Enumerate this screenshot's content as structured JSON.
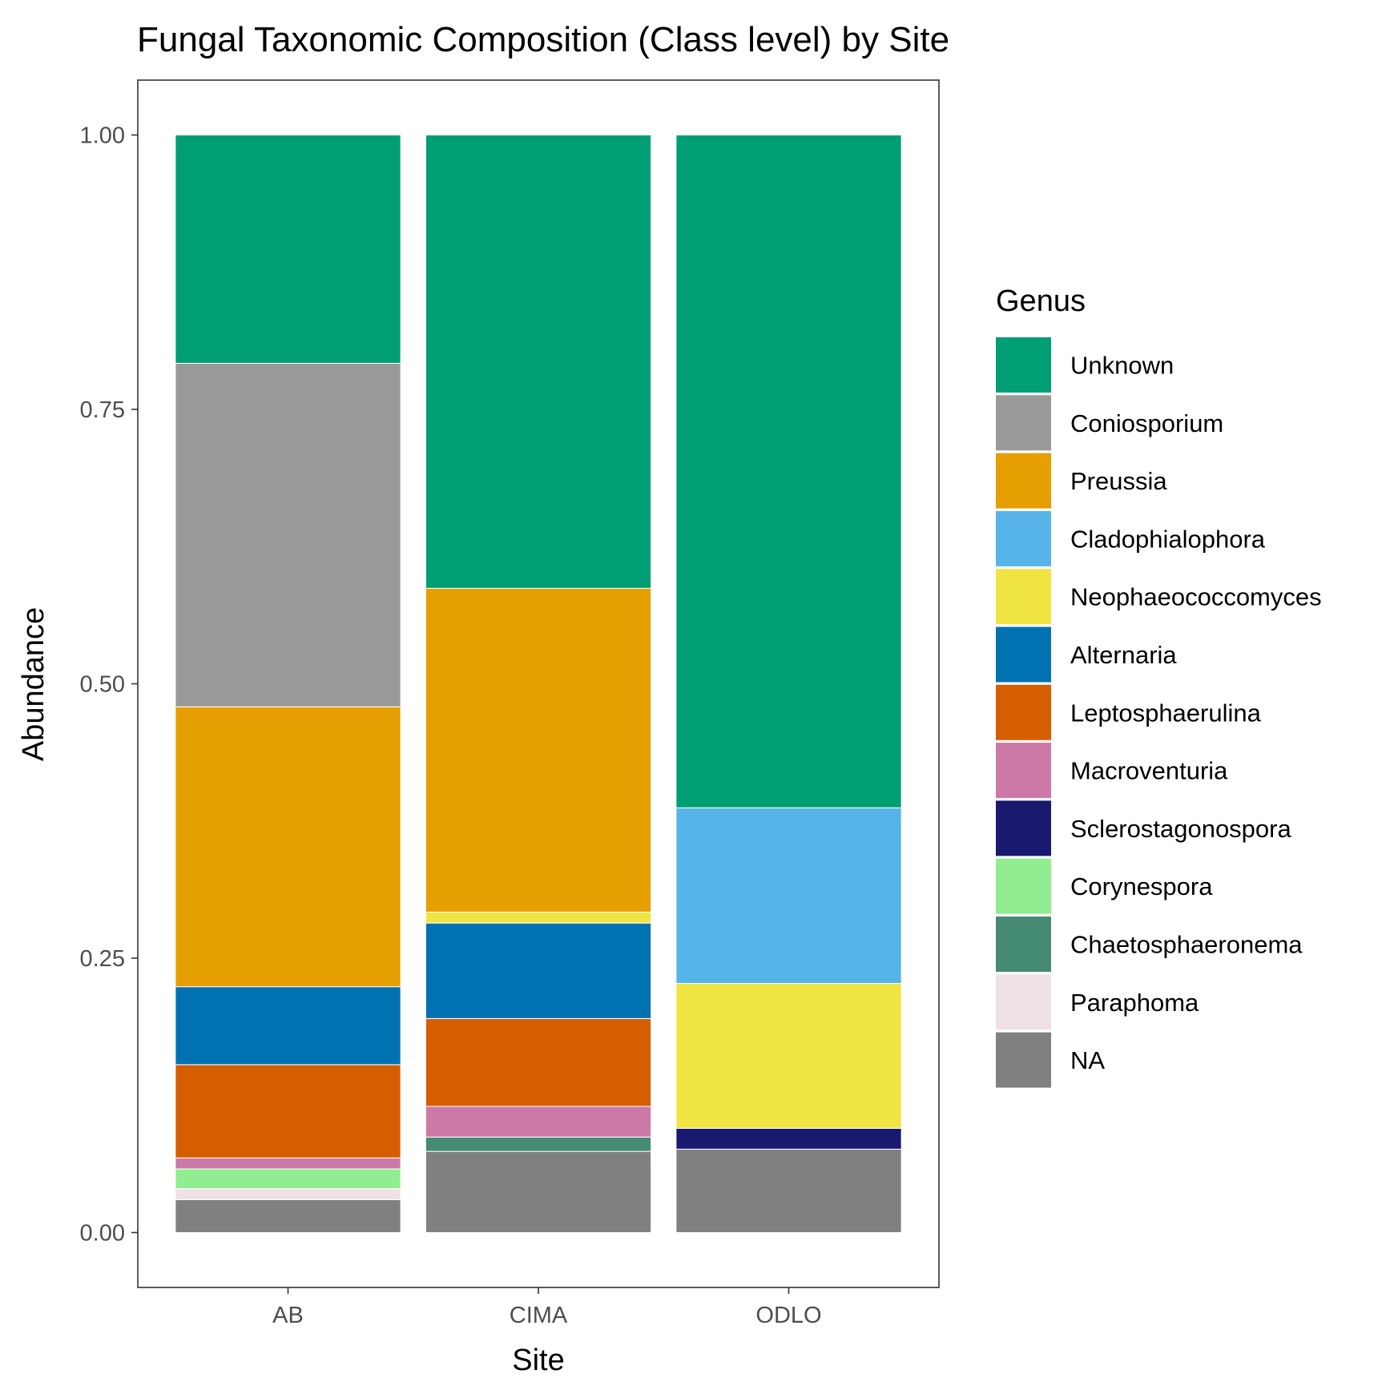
{
  "chart_data": {
    "type": "bar",
    "stacked": true,
    "title": "Fungal Taxonomic Composition (Class level) by Site",
    "xlabel": "Site",
    "ylabel": "Abundance",
    "ylim": [
      -0.05,
      1.05
    ],
    "yticks": [
      {
        "value": 0.0,
        "label": "0.00"
      },
      {
        "value": 0.25,
        "label": "0.25"
      },
      {
        "value": 0.5,
        "label": "0.50"
      },
      {
        "value": 0.75,
        "label": "0.75"
      },
      {
        "value": 1.0,
        "label": "1.00"
      }
    ],
    "categories": [
      "AB",
      "CIMA",
      "ODLO"
    ],
    "grid": false,
    "legend": {
      "title": "Genus",
      "position": "right"
    },
    "series": [
      {
        "name": "Unknown",
        "color": "#009E73",
        "values": [
          0.208,
          0.413,
          0.613
        ]
      },
      {
        "name": "Coniosporium",
        "color": "#999999",
        "values": [
          0.313,
          0,
          0
        ]
      },
      {
        "name": "Preussia",
        "color": "#E69F00",
        "values": [
          0.255,
          0.295,
          0
        ]
      },
      {
        "name": "Cladophialophora",
        "color": "#56B4E9",
        "values": [
          0,
          0,
          0.16
        ]
      },
      {
        "name": "Neophaeococcomyces",
        "color": "#F0E442",
        "values": [
          0,
          0.01,
          0.132
        ]
      },
      {
        "name": "Alternaria",
        "color": "#0072B2",
        "values": [
          0.071,
          0.087,
          0
        ]
      },
      {
        "name": "Leptosphaerulina",
        "color": "#D55E00",
        "values": [
          0.085,
          0.08,
          0
        ]
      },
      {
        "name": "Macroventuria",
        "color": "#CC79A7",
        "values": [
          0.01,
          0.028,
          0
        ]
      },
      {
        "name": "Sclerostagonospora",
        "color": "#191970",
        "values": [
          0,
          0,
          0.019
        ]
      },
      {
        "name": "Corynespora",
        "color": "#90EE90",
        "values": [
          0.018,
          0,
          0
        ]
      },
      {
        "name": "Chaetosphaeronema",
        "color": "#458B74",
        "values": [
          0,
          0.013,
          0
        ]
      },
      {
        "name": "Paraphoma",
        "color": "#EEE0E5",
        "values": [
          0.01,
          0,
          0
        ]
      },
      {
        "name": "NA",
        "color": "#808080",
        "values": [
          0.03,
          0.074,
          0.076
        ]
      }
    ]
  }
}
